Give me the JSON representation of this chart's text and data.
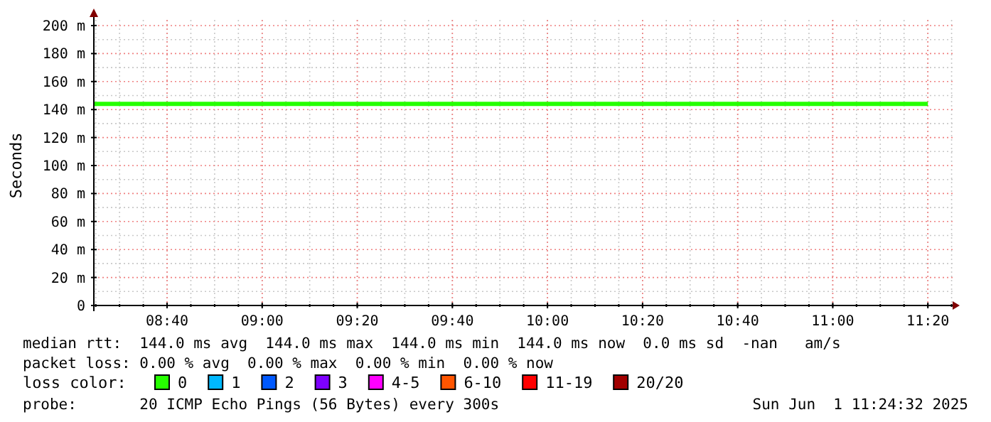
{
  "chart_data": {
    "type": "line",
    "ylabel": "Seconds",
    "legend_title": "loss color:",
    "legend": "bottom",
    "grid": true,
    "line_style": "solid",
    "x": [
      8.41,
      11.3333
    ],
    "xlim": [
      8.41,
      11.42
    ],
    "xticks": [
      {
        "value": 8.6667,
        "label": "08:40"
      },
      {
        "value": 9,
        "label": "09:00"
      },
      {
        "value": 9.3333,
        "label": "09:20"
      },
      {
        "value": 9.6667,
        "label": "09:40"
      },
      {
        "value": 10,
        "label": "10:00"
      },
      {
        "value": 10.3333,
        "label": "10:20"
      },
      {
        "value": 10.6667,
        "label": "10:40"
      },
      {
        "value": 11,
        "label": "11:00"
      },
      {
        "value": 11.3333,
        "label": "11:20"
      }
    ],
    "ylim": [
      0,
      200
    ],
    "yticks": [
      0,
      {
        "value": 20,
        "label": "20 m"
      },
      {
        "value": 40,
        "label": "40 m"
      },
      {
        "value": 60,
        "label": "60 m"
      },
      {
        "value": 80,
        "label": "80 m"
      },
      {
        "value": 100,
        "label": "100 m"
      },
      {
        "value": 120,
        "label": "120 m"
      },
      {
        "value": 140,
        "label": "140 m"
      },
      {
        "value": 160,
        "label": "160 m"
      },
      {
        "value": 180,
        "label": "180 m"
      },
      {
        "value": 200,
        "label": "200 m"
      }
    ],
    "series": [
      {
        "name": "0",
        "color": "#26ff00",
        "values": [
          144,
          144
        ]
      },
      {
        "name": "1",
        "color": "#00b8ff",
        "values": [
          null,
          null
        ]
      },
      {
        "name": "2",
        "color": "#0059ff",
        "values": [
          null,
          null
        ]
      },
      {
        "name": "3",
        "color": "#7e00ff",
        "values": [
          null,
          null
        ]
      },
      {
        "name": "4-5",
        "color": "#ff00ff",
        "values": [
          null,
          null
        ]
      },
      {
        "name": "6-10",
        "color": "#ff5500",
        "values": [
          null,
          null
        ]
      },
      {
        "name": "11-19",
        "color": "#ff0000",
        "values": [
          null,
          null
        ]
      },
      {
        "name": "20/20",
        "color": "#a10000",
        "values": [
          null,
          null
        ]
      }
    ],
    "annotations": [
      "median rtt:  144.0 ms avg  144.0 ms max  144.0 ms min  144.0 ms now  0.0 ms sd  -nan   am/s",
      "packet loss: 0.00 % avg  0.00 % max  0.00 % min  0.00 % now",
      "probe:       20 ICMP Echo Pings (56 Bytes) every 300s",
      "Sun Jun  1 11:24:32 2025"
    ]
  }
}
